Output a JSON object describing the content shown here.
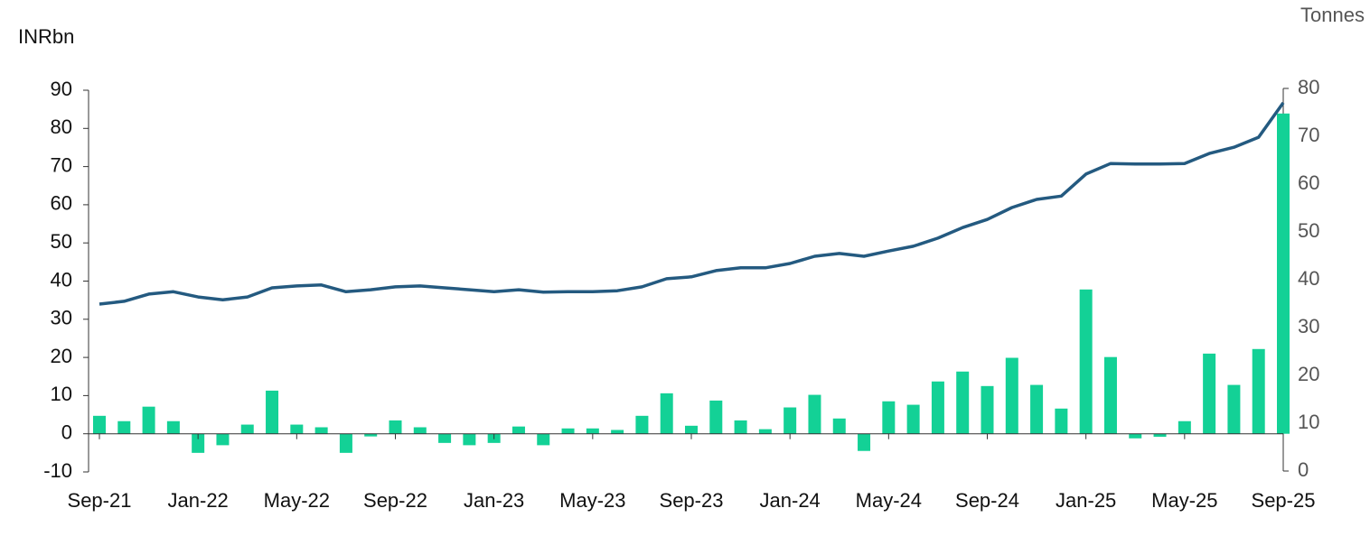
{
  "chart_data": {
    "type": "bar-line",
    "y_label": "INRbn",
    "y2_label": "Tonnes",
    "categories": [
      "Sep-21",
      null,
      null,
      null,
      "Jan-22",
      null,
      null,
      null,
      "May-22",
      null,
      null,
      null,
      "Sep-22",
      null,
      null,
      null,
      "Jan-23",
      null,
      null,
      null,
      "May-23",
      null,
      null,
      null,
      "Sep-23",
      null,
      null,
      null,
      "Jan-24",
      null,
      null,
      null,
      "May-24",
      null,
      null,
      null,
      "Sep-24",
      null,
      null,
      null,
      "Jan-25",
      null,
      null,
      null,
      "May-25",
      null,
      null,
      null,
      "Sep-25"
    ],
    "series": [
      {
        "type": "bar",
        "color": "#13d196",
        "values": [
          4.7,
          3.3,
          7.1,
          3.3,
          -5,
          -3,
          2.4,
          11.3,
          2.4,
          1.7,
          -5,
          -0.7,
          3.5,
          1.7,
          -2.4,
          -3,
          -2.4,
          1.9,
          -3,
          1.4,
          1.4,
          1,
          4.7,
          10.6,
          2.1,
          8.7,
          3.5,
          1.2,
          6.9,
          10.2,
          4,
          -4.5,
          8.5,
          7.6,
          13.7,
          16.3,
          12.5,
          19.9,
          12.8,
          6.6,
          37.8,
          20.1,
          -1.2,
          -0.8,
          3.3,
          21,
          12.8,
          22.2,
          83.9
        ]
      },
      {
        "type": "line",
        "axis": "y2",
        "color": "#245a80",
        "values": [
          34.9,
          35.5,
          37,
          37.5,
          36.4,
          35.8,
          36.4,
          38.3,
          38.7,
          38.9,
          37.5,
          37.9,
          38.5,
          38.7,
          38.3,
          37.9,
          37.5,
          37.9,
          37.4,
          37.5,
          37.5,
          37.7,
          38.5,
          40.2,
          40.6,
          41.9,
          42.5,
          42.5,
          43.4,
          44.9,
          45.5,
          44.9,
          46,
          47,
          48.7,
          50.9,
          52.6,
          55.1,
          56.8,
          57.5,
          62.1,
          64.3,
          64.2,
          64.2,
          64.3,
          66.4,
          67.7,
          69.8,
          77
        ]
      }
    ],
    "ylim": [
      -10,
      90
    ],
    "yticks": [
      -10,
      0,
      10,
      20,
      30,
      40,
      50,
      60,
      70,
      80,
      90
    ],
    "y2lim": [
      0,
      80
    ],
    "y2ticks": [
      0,
      10,
      20,
      30,
      40,
      50,
      60,
      70,
      80
    ]
  }
}
